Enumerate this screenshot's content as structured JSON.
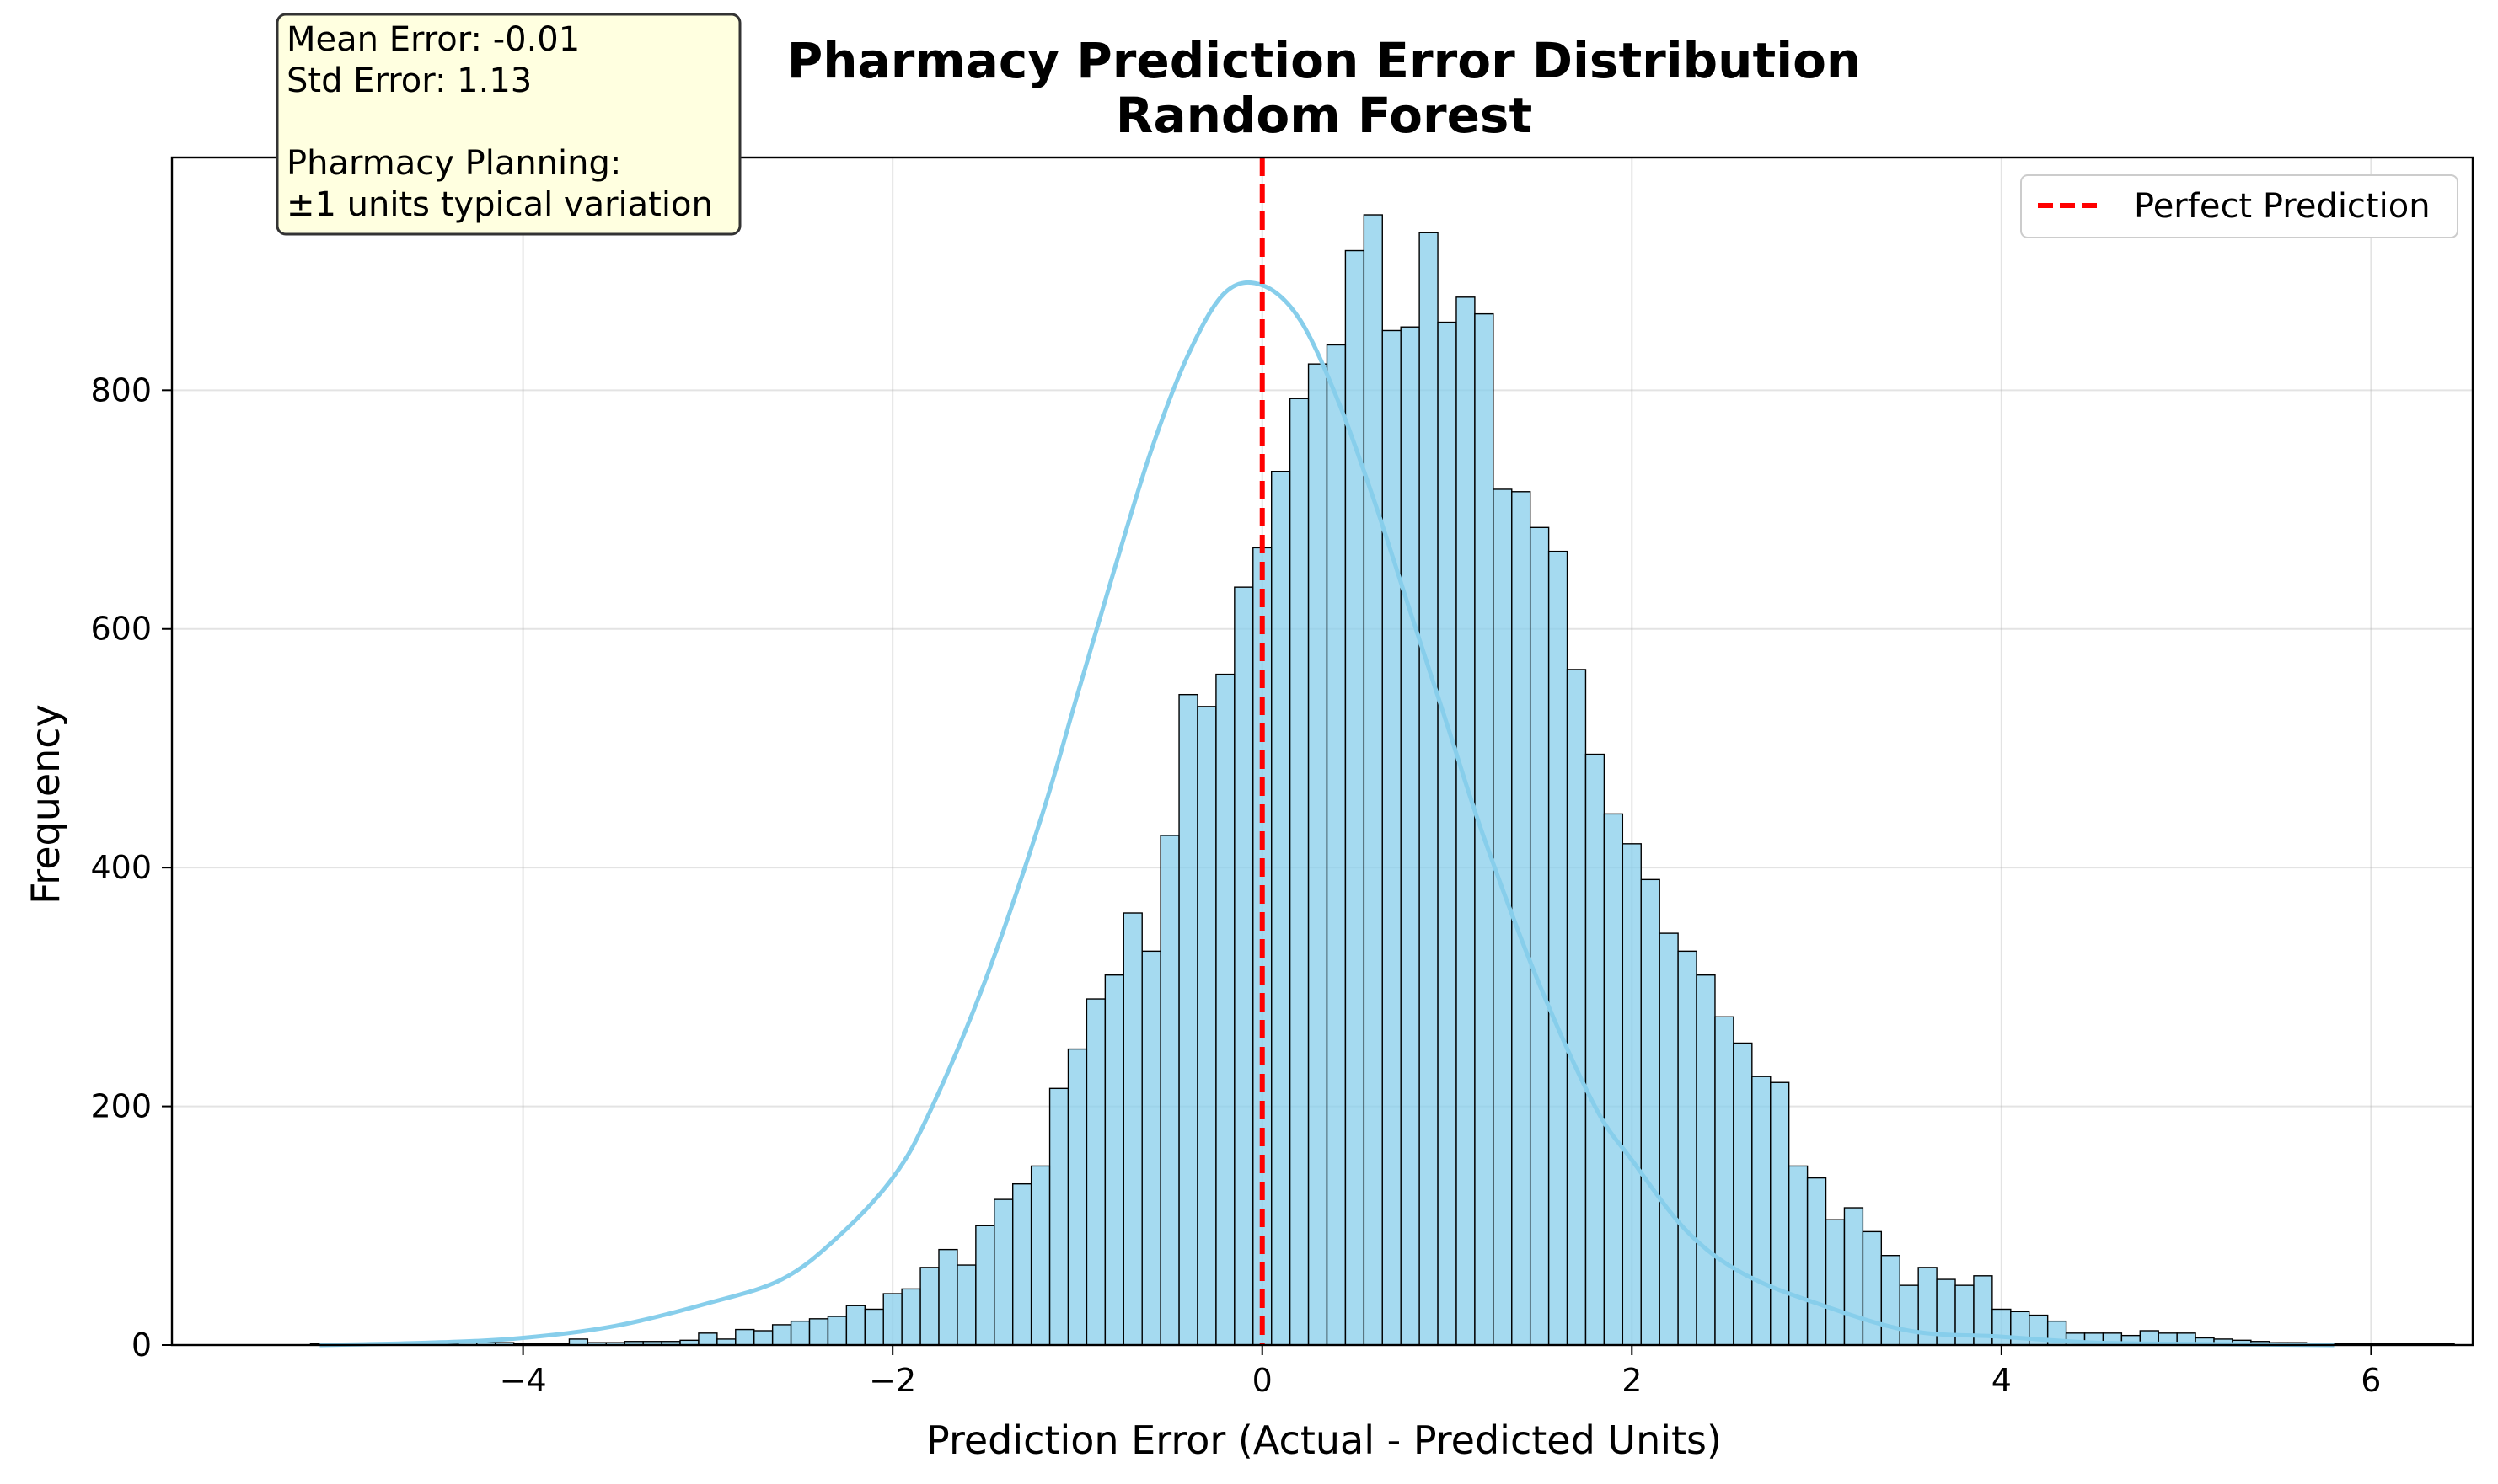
{
  "chart_data": {
    "type": "histogram",
    "title": "Pharmacy Prediction Error Distribution",
    "subtitle": "Random Forest",
    "xlabel": "Prediction Error (Actual - Predicted Units)",
    "ylabel": "Frequency",
    "xlim": [
      -5.9,
      6.55
    ],
    "ylim": [
      0,
      995
    ],
    "xticks": [
      -4,
      -2,
      0,
      2,
      4,
      6
    ],
    "xtick_labels": [
      "−4",
      "−2",
      "0",
      "2",
      "4",
      "6"
    ],
    "yticks": [
      0,
      200,
      400,
      600,
      800
    ],
    "ytick_labels": [
      "0",
      "200",
      "400",
      "600",
      "800"
    ],
    "grid": true,
    "bin_start": -5.15,
    "bin_width": 0.1,
    "counts": [
      1,
      1,
      1,
      1,
      1,
      1,
      1,
      1,
      2,
      2,
      2,
      1,
      1,
      1,
      5,
      2,
      2,
      3,
      3,
      3,
      4,
      10,
      5,
      13,
      12,
      17,
      20,
      22,
      24,
      33,
      30,
      43,
      47,
      65,
      80,
      67,
      100,
      122,
      135,
      150,
      215,
      248,
      290,
      310,
      362,
      330,
      427,
      545,
      535,
      562,
      635,
      668,
      732,
      793,
      822,
      838,
      917,
      947,
      850,
      853,
      932,
      857,
      878,
      864,
      717,
      715,
      685,
      665,
      566,
      495,
      445,
      420,
      390,
      345,
      330,
      310,
      275,
      253,
      225,
      220,
      150,
      140,
      105,
      115,
      95,
      75,
      50,
      65,
      55,
      50,
      58,
      30,
      28,
      25,
      20,
      10,
      10,
      10,
      8,
      12,
      10,
      10,
      6,
      5,
      4,
      3,
      2,
      2,
      1,
      1,
      1,
      1,
      1,
      1,
      1,
      1
    ],
    "kde": {
      "x": [
        -5.1,
        -4.5,
        -4.0,
        -3.5,
        -3.0,
        -2.6,
        -2.3,
        -2.0,
        -1.8,
        -1.5,
        -1.2,
        -1.0,
        -0.8,
        -0.6,
        -0.4,
        -0.2,
        0.0,
        0.2,
        0.4,
        0.6,
        0.8,
        1.0,
        1.2,
        1.5,
        1.8,
        2.0,
        2.3,
        2.6,
        3.0,
        3.5,
        4.0,
        4.5,
        5.0,
        5.8
      ],
      "y": [
        0,
        2,
        6,
        16,
        35,
        55,
        90,
        140,
        195,
        305,
        440,
        545,
        650,
        750,
        830,
        882,
        888,
        860,
        795,
        710,
        615,
        520,
        425,
        302,
        200,
        155,
        95,
        60,
        35,
        12,
        7,
        2,
        1,
        0
      ],
      "color": "#87ceeb"
    },
    "reference_line": {
      "x": 0,
      "color": "#ff0000",
      "style": "dashed",
      "label": "Perfect Prediction"
    },
    "bar_color": "#87ceeb",
    "legend": {
      "position": "top-right",
      "entries": [
        "Perfect Prediction"
      ]
    },
    "annotation": {
      "lines": [
        "Mean Error: -0.01",
        "Std Error: 1.13",
        "",
        "Pharmacy Planning:",
        "±1 units typical variation"
      ],
      "position": "top-left"
    }
  }
}
